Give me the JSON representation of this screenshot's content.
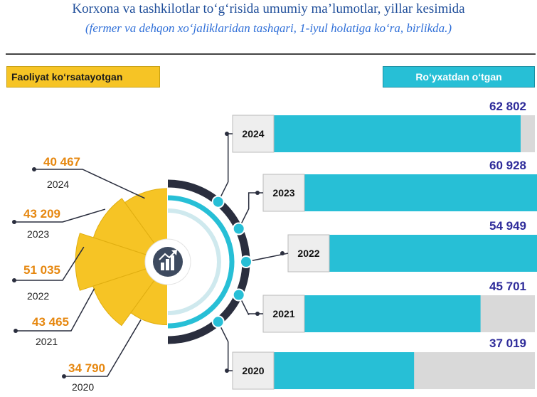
{
  "title": "Korxona va tashkilotlar to‘g‘risida umumiy ma’lumotlar, yillar kesimida",
  "subtitle": "(fermer va dehqon xo‘jaliklaridan tashqari, 1-iyul holatiga ko‘ra, birlikda.)",
  "labels": {
    "active": "Faoliyat ko‘rsatayotgan",
    "registered": "Ro‘yxatdan o‘tgan"
  },
  "colors": {
    "active": "#f6c425",
    "registered": "#27bfd6",
    "bar_track": "#d9d9d9",
    "registered_value_text": "#2e2b9a",
    "active_value_text": "#e6870f"
  },
  "center_icon": "growth-chart-icon",
  "chart_data": [
    {
      "type": "bar",
      "orientation": "horizontal",
      "title": "Ro‘yxatdan o‘tgan",
      "categories": [
        "2024",
        "2023",
        "2022",
        "2021",
        "2020"
      ],
      "values": [
        62802,
        60928,
        54949,
        45701,
        37019
      ],
      "value_labels": [
        "62 802",
        "60 928",
        "54 949",
        "45 701",
        "37 019"
      ]
    },
    {
      "type": "pie",
      "title": "Faoliyat ko‘rsatayotgan",
      "categories": [
        "2024",
        "2023",
        "2022",
        "2021",
        "2020"
      ],
      "values": [
        40467,
        43209,
        51035,
        43465,
        34790
      ],
      "value_labels": [
        "40 467",
        "43 209",
        "51 035",
        "43 465",
        "34 790"
      ]
    }
  ]
}
